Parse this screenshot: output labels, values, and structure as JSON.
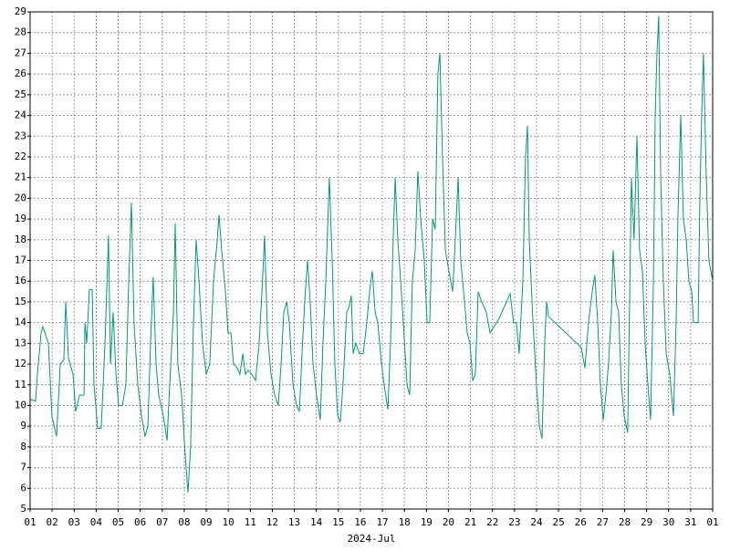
{
  "chart_data": {
    "type": "line",
    "x_label": "2024-Jul",
    "x": [
      0,
      0.25,
      0.33,
      0.5,
      0.58,
      0.83,
      0.99,
      1.2,
      1.37,
      1.53,
      1.62,
      1.74,
      1.95,
      2.07,
      2.24,
      2.45,
      2.49,
      2.57,
      2.69,
      2.82,
      2.9,
      3.07,
      3.23,
      3.4,
      3.56,
      3.65,
      3.77,
      3.9,
      4.02,
      4.19,
      4.35,
      4.48,
      4.6,
      4.72,
      4.89,
      5.06,
      5.22,
      5.35,
      5.47,
      5.59,
      5.72,
      5.84,
      6.05,
      6.22,
      6.34,
      6.51,
      6.59,
      6.71,
      6.88,
      7.05,
      7.17,
      7.29,
      7.42,
      7.54,
      7.67,
      7.83,
      8,
      8.16,
      8.33,
      8.5,
      8.58,
      8.7,
      8.87,
      8.99,
      9.12,
      9.24,
      9.41,
      9.53,
      9.66,
      9.78,
      9.9,
      10.07,
      10.24,
      10.4,
      10.53,
      10.65,
      10.78,
      10.94,
      11.11,
      11.27,
      11.4,
      11.52,
      11.65,
      11.77,
      11.94,
      12.1,
      12.23,
      12.35,
      12.47,
      12.6,
      12.72,
      12.85,
      13.01,
      13.18,
      13.3,
      13.43,
      13.59,
      13.72,
      13.84,
      13.97,
      14.09,
      14.21,
      14.38,
      14.5,
      14.59,
      14.67,
      14.79,
      14.96,
      15.13,
      15.29,
      15.42,
      15.54,
      15.67,
      15.79,
      15.96,
      16.08,
      16.25,
      16.37,
      16.49,
      16.58,
      16.7,
      16.83,
      16.95,
      17.12,
      17.24,
      17.36,
      17.49,
      17.61,
      17.74,
      17.9,
      18.03,
      18.15,
      18.28,
      18.4,
      18.52,
      18.61,
      18.73,
      18.86,
      19.02,
      19.19,
      19.31,
      19.44,
      19.56,
      19.73,
      19.85,
      19.98,
      20.1,
      20.22,
      20.35,
      20.51,
      20.72,
      20.89,
      21.3,
      21.8,
      21.96,
      22.09,
      22.21,
      22.38,
      22.5,
      22.59,
      22.67,
      22.84,
      23,
      23.13,
      23.25,
      23.37,
      23.46,
      23.54,
      25.03,
      25.2,
      25.36,
      25.53,
      25.65,
      25.78,
      25.9,
      26.03,
      26.15,
      26.27,
      26.4,
      26.48,
      26.61,
      26.73,
      26.85,
      26.98,
      27.14,
      27.31,
      27.43,
      27.56,
      27.68,
      27.81,
      27.93,
      28.06,
      28.18,
      28.31,
      28.39,
      28.47,
      28.55,
      28.64,
      28.76,
      28.89,
      29.05,
      29.22,
      29.34,
      29.42,
      29.55,
      29.67,
      29.8,
      29.92,
      30.05,
      30.13,
      30.34,
      30.42,
      30.5,
      30.58,
      30.71,
      30.83,
      31
    ],
    "values": [
      10.3,
      10.2,
      11.5,
      13.5,
      13.8,
      13,
      9.5,
      8.5,
      12,
      12.2,
      15,
      12.3,
      11.5,
      9.7,
      10.5,
      10.5,
      14,
      13,
      15.6,
      15.6,
      11,
      8.9,
      8.9,
      13,
      18.2,
      12,
      14.5,
      11.5,
      10,
      10,
      11,
      16,
      19.8,
      14,
      11,
      9.5,
      8.5,
      9,
      13,
      16.2,
      12,
      10.5,
      9.5,
      8.3,
      11,
      14.5,
      18.8,
      12,
      10.5,
      7.5,
      5.8,
      8,
      14,
      18,
      16,
      13,
      11.5,
      12,
      16,
      18,
      19.2,
      17.5,
      15.5,
      13.5,
      13.5,
      12,
      11.8,
      11.5,
      12.5,
      11.5,
      11.7,
      11.5,
      11.2,
      13,
      15.5,
      18.2,
      13.5,
      11.5,
      10.5,
      10,
      12,
      14.5,
      15,
      14,
      11,
      10,
      9.7,
      12.5,
      15,
      17,
      15,
      12,
      10.5,
      9.3,
      13,
      16,
      21,
      17,
      12,
      9.5,
      9.2,
      11,
      14.5,
      14.8,
      15.3,
      12.5,
      13,
      12.5,
      12.5,
      14,
      15.5,
      16.5,
      14.5,
      14,
      12,
      11,
      9.8,
      13,
      18,
      21,
      18,
      16,
      14,
      11,
      10.5,
      16,
      17.5,
      21.3,
      19,
      17,
      14,
      14,
      19,
      18.5,
      26,
      27,
      22,
      17.5,
      16.5,
      15.5,
      18,
      21,
      17,
      15,
      13.5,
      13,
      11.2,
      11.5,
      15.5,
      15,
      14.5,
      13.5,
      14.2,
      15.4,
      14,
      14,
      12.5,
      16,
      22,
      23.5,
      18,
      14,
      11,
      9,
      8.4,
      13,
      15,
      14.3,
      12.8,
      11.8,
      14,
      15.5,
      16.3,
      14,
      11,
      9.3,
      10.5,
      12,
      14.5,
      17.5,
      15,
      14.5,
      11,
      9.5,
      8.7,
      21,
      18,
      23,
      17.5,
      16.5,
      13,
      11,
      9.3,
      16,
      24,
      27,
      28.8,
      21,
      16,
      12.5,
      11.5,
      9.5,
      14,
      19,
      24,
      19,
      18,
      16,
      15.5,
      14,
      14,
      20,
      24,
      27,
      21,
      17,
      16
    ],
    "color": "#00997a",
    "xlim": [
      0,
      31
    ],
    "xticks": [
      {
        "value": 0,
        "label": "01"
      },
      {
        "value": 1,
        "label": "02"
      },
      {
        "value": 2,
        "label": "03"
      },
      {
        "value": 3,
        "label": "04"
      },
      {
        "value": 4,
        "label": "05"
      },
      {
        "value": 5,
        "label": "06"
      },
      {
        "value": 6,
        "label": "07"
      },
      {
        "value": 7,
        "label": "08"
      },
      {
        "value": 8,
        "label": "09"
      },
      {
        "value": 9,
        "label": "10"
      },
      {
        "value": 10,
        "label": "11"
      },
      {
        "value": 11,
        "label": "12"
      },
      {
        "value": 12,
        "label": "13"
      },
      {
        "value": 13,
        "label": "14"
      },
      {
        "value": 14,
        "label": "15"
      },
      {
        "value": 15,
        "label": "16"
      },
      {
        "value": 16,
        "label": "17"
      },
      {
        "value": 17,
        "label": "18"
      },
      {
        "value": 18,
        "label": "19"
      },
      {
        "value": 19,
        "label": "20"
      },
      {
        "value": 20,
        "label": "21"
      },
      {
        "value": 21,
        "label": "22"
      },
      {
        "value": 22,
        "label": "23"
      },
      {
        "value": 23,
        "label": "24"
      },
      {
        "value": 24,
        "label": "25"
      },
      {
        "value": 25,
        "label": "26"
      },
      {
        "value": 26,
        "label": "27"
      },
      {
        "value": 27,
        "label": "28"
      },
      {
        "value": 28,
        "label": "29"
      },
      {
        "value": 29,
        "label": "30"
      },
      {
        "value": 30,
        "label": "31"
      },
      {
        "value": 31,
        "label": "01"
      }
    ],
    "ylim": [
      5,
      29
    ],
    "yticks": [
      5,
      6,
      7,
      8,
      9,
      10,
      11,
      12,
      13,
      14,
      15,
      16,
      17,
      18,
      19,
      20,
      21,
      22,
      23,
      24,
      25,
      26,
      27,
      28,
      29
    ],
    "grid": true
  }
}
